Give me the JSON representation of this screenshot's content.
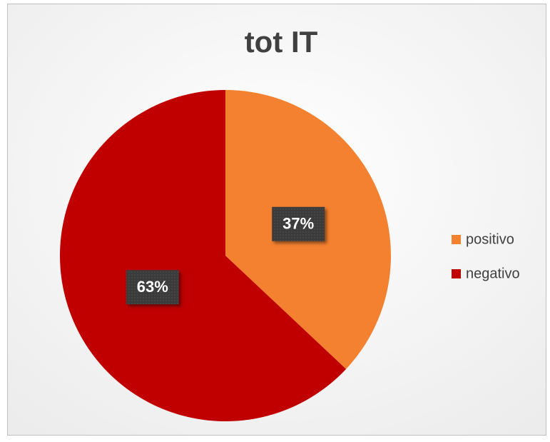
{
  "chart_data": {
    "type": "pie",
    "title": "tot IT",
    "categories": [
      "positivo",
      "negativo"
    ],
    "values": [
      37,
      63
    ],
    "value_labels": [
      "37%",
      "63%"
    ],
    "colors": [
      "#f4812f",
      "#c00000"
    ],
    "legend": "right"
  }
}
